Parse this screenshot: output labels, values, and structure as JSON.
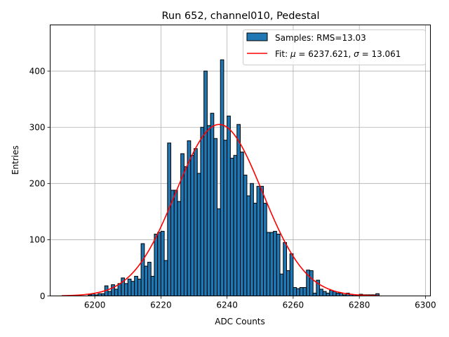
{
  "chart_data": {
    "type": "bar",
    "title": "Run 652, channel010, Pedestal",
    "xlabel": "ADC Counts",
    "ylabel": "Entries",
    "xlim": [
      6186.5,
      6301.5
    ],
    "ylim": [
      0,
      482
    ],
    "x_ticks": [
      6200,
      6220,
      6240,
      6260,
      6280,
      6300
    ],
    "y_ticks": [
      0,
      100,
      200,
      300,
      400
    ],
    "grid": true,
    "legend_position": "top-right",
    "bar_color": "#1f77b4",
    "edge_color": "#000000",
    "fit_color": "#ff0000",
    "bin_width": 1,
    "bins": [
      6198,
      6199,
      6200,
      6201,
      6202,
      6203,
      6204,
      6205,
      6206,
      6207,
      6208,
      6209,
      6210,
      6211,
      6212,
      6213,
      6214,
      6215,
      6216,
      6217,
      6218,
      6219,
      6220,
      6221,
      6222,
      6223,
      6224,
      6225,
      6226,
      6227,
      6228,
      6229,
      6230,
      6231,
      6232,
      6233,
      6234,
      6235,
      6236,
      6237,
      6238,
      6239,
      6240,
      6241,
      6242,
      6243,
      6244,
      6245,
      6246,
      6247,
      6248,
      6249,
      6250,
      6251,
      6252,
      6253,
      6254,
      6255,
      6256,
      6257,
      6258,
      6259,
      6260,
      6261,
      6262,
      6263,
      6264,
      6265,
      6266,
      6267,
      6268,
      6269,
      6270,
      6271,
      6272,
      6273,
      6274,
      6275,
      6276,
      6277,
      6278,
      6279,
      6280,
      6281,
      6282,
      6283,
      6284,
      6285
    ],
    "counts": [
      2,
      4,
      2,
      4,
      4,
      18,
      8,
      20,
      12,
      22,
      32,
      22,
      30,
      26,
      35,
      30,
      93,
      53,
      60,
      35,
      110,
      113,
      115,
      63,
      272,
      188,
      188,
      168,
      253,
      230,
      276,
      250,
      262,
      218,
      300,
      400,
      303,
      325,
      280,
      155,
      420,
      277,
      320,
      245,
      250,
      305,
      256,
      215,
      178,
      200,
      165,
      195,
      195,
      165,
      113,
      113,
      115,
      110,
      39,
      95,
      45,
      75,
      15,
      13,
      15,
      15,
      46,
      45,
      5,
      28,
      12,
      8,
      5,
      10,
      8,
      5,
      5,
      2,
      5,
      3,
      2,
      2,
      3,
      2,
      2,
      2,
      2,
      4
    ],
    "series": [
      {
        "name": "Samples: RMS=13.03",
        "kind": "histogram"
      },
      {
        "name": "Fit",
        "kind": "gaussian",
        "mu": 6237.621,
        "sigma": 13.061,
        "amplitude": 305,
        "x_range": [
          6190,
          6286
        ]
      }
    ],
    "legend": {
      "samples_label": "Samples: RMS=13.03",
      "fit_prefix": "Fit: ",
      "mu_symbol": "μ",
      "mu_text": " = 6237.621, ",
      "sigma_symbol": "σ",
      "sigma_text": " = 13.061"
    }
  }
}
